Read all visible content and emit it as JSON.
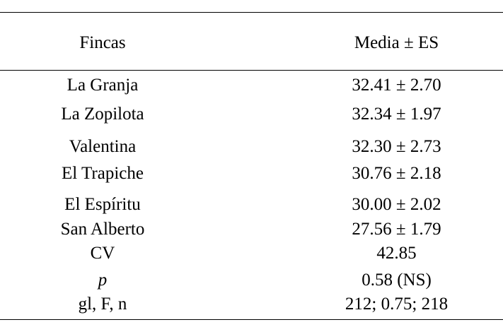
{
  "table": {
    "headers": [
      "Fincas",
      "Media ± ES"
    ],
    "rows": [
      [
        "La Granja",
        "32.41 ± 2.70"
      ],
      [
        "La Zopilota",
        "32.34 ± 1.97"
      ],
      [
        "Valentina",
        "32.30 ± 2.73"
      ],
      [
        "El Trapiche",
        "30.76 ± 2.18"
      ],
      [
        "El Espíritu",
        "30.00 ± 2.02"
      ],
      [
        "San Alberto",
        "27.56 ± 1.79"
      ],
      [
        "CV",
        "42.85"
      ],
      [
        "p",
        "0.58 (NS)"
      ],
      [
        "gl, F, n",
        "212; 0.75; 218"
      ]
    ]
  }
}
